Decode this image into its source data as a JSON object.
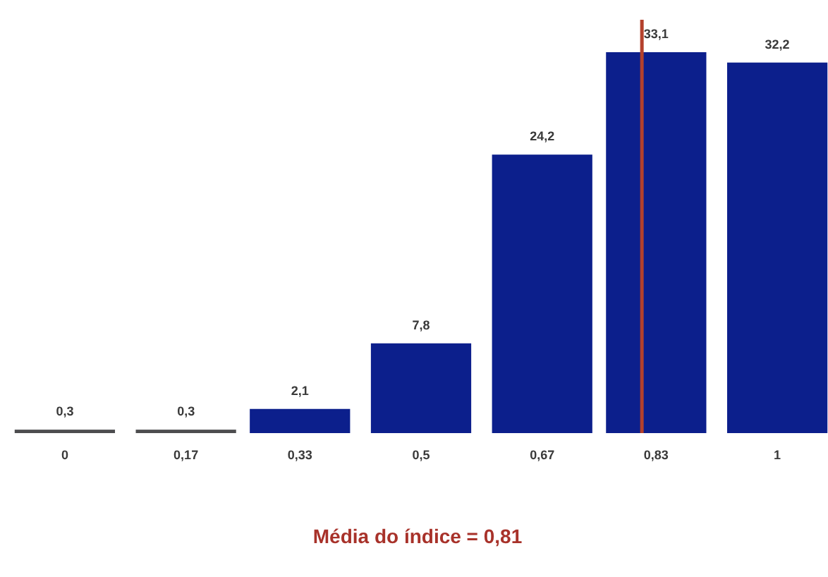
{
  "chart_data": {
    "type": "bar",
    "x": [
      0,
      0.17,
      0.33,
      0.5,
      0.67,
      0.83,
      1
    ],
    "values": [
      0.3,
      0.3,
      2.1,
      7.8,
      24.2,
      33.1,
      32.2
    ],
    "value_labels": [
      "0,3",
      "0,3",
      "2,1",
      "7,8",
      "24,2",
      "33,1",
      "32,2"
    ],
    "colors": [
      "#4d4d4f",
      "#4d4d4f",
      "#0c1f8c",
      "#0c1f8c",
      "#0c1f8c",
      "#0c1f8c",
      "#0c1f8c"
    ],
    "xlim": [
      -0.07,
      1.07
    ],
    "xticks": [
      0,
      {
        "value": 0.17,
        "label": "0,17"
      },
      {
        "value": 0.33,
        "label": "0,33"
      },
      {
        "value": 0.5,
        "label": "0,5"
      },
      {
        "value": 0.67,
        "label": "0,67"
      },
      {
        "value": 0.83,
        "label": "0,83"
      },
      1
    ],
    "tick_labels": "x",
    "ref_lines": [
      {
        "axis": "x",
        "value": 0.81,
        "color": "#b4412c"
      }
    ],
    "annotations": [
      "Média do índice = 0,81"
    ]
  }
}
